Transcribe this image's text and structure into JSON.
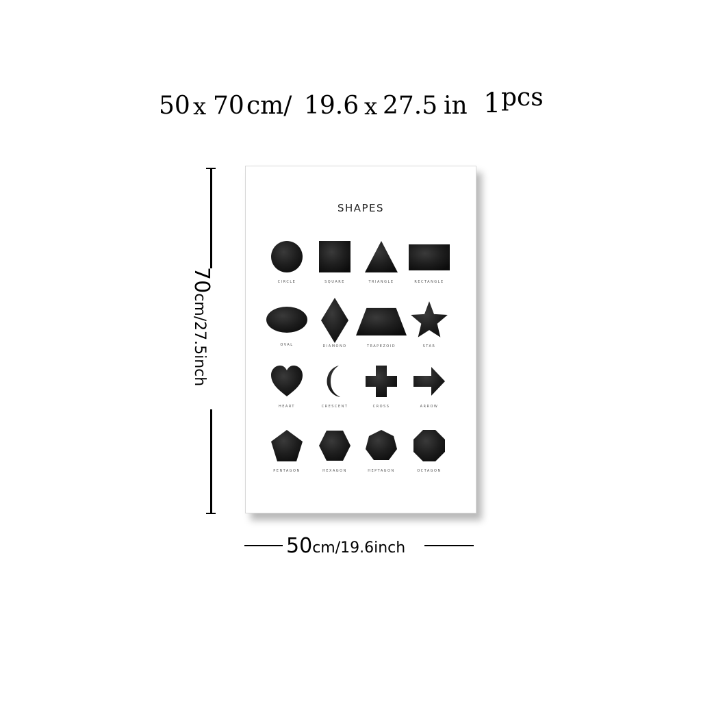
{
  "header": {
    "w": "50",
    "x1": "x",
    "h": "70",
    "unit_cm": "cm/",
    "w_in": "19.6",
    "x2": "x",
    "h_in": "27.5",
    "unit_in": "in",
    "qty": "1",
    "qty_unit": "pcs"
  },
  "poster": {
    "title": "SHAPES",
    "shapes": [
      {
        "label": "CIRCLE",
        "icon": "circle-icon"
      },
      {
        "label": "SQUARE",
        "icon": "square-icon"
      },
      {
        "label": "TRIANGLE",
        "icon": "triangle-icon"
      },
      {
        "label": "RECTANGLE",
        "icon": "rectangle-icon"
      },
      {
        "label": "OVAL",
        "icon": "oval-icon"
      },
      {
        "label": "DIAMOND",
        "icon": "diamond-icon"
      },
      {
        "label": "TRAPEZOID",
        "icon": "trapezoid-icon"
      },
      {
        "label": "STAR",
        "icon": "star-icon"
      },
      {
        "label": "HEART",
        "icon": "heart-icon"
      },
      {
        "label": "CRESCENT",
        "icon": "crescent-icon"
      },
      {
        "label": "CROSS",
        "icon": "cross-icon"
      },
      {
        "label": "ARROW",
        "icon": "arrow-icon"
      },
      {
        "label": "PENTAGON",
        "icon": "pentagon-icon"
      },
      {
        "label": "HEXAGON",
        "icon": "hexagon-icon"
      },
      {
        "label": "HEPTAGON",
        "icon": "heptagon-icon"
      },
      {
        "label": "OCTAGON",
        "icon": "octagon-icon"
      }
    ]
  },
  "height_dim": {
    "value": "70",
    "unit": "cm/27.5inch"
  },
  "width_dim": {
    "value": "50",
    "unit": "cm/19.6inch"
  }
}
